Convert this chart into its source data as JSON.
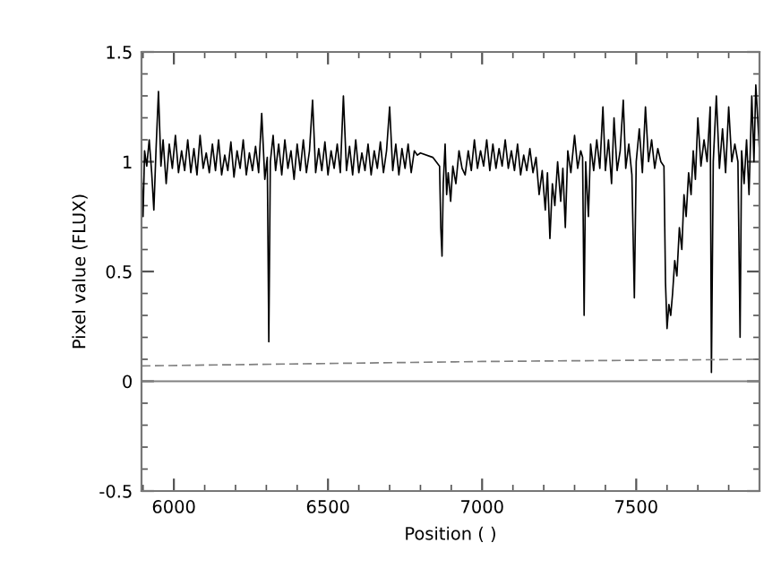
{
  "chart_data": {
    "type": "line",
    "xlabel": "Position ( )",
    "ylabel": "Pixel value (FLUX)",
    "xlim": [
      5895,
      7900
    ],
    "ylim": [
      -0.5,
      1.5
    ],
    "xticks": [
      6000,
      6500,
      7000,
      7500
    ],
    "yticks": [
      -0.5,
      0,
      0.5,
      1,
      1.5
    ],
    "grid": false,
    "legend": false,
    "ref_lines": [
      {
        "axis": "y",
        "value": 0,
        "color": "#808080",
        "line_style": "solid"
      }
    ],
    "series": [
      {
        "color": "#000000",
        "line_style": "solid",
        "x": [
          5895,
          5900,
          5905,
          5912,
          5920,
          5928,
          5935,
          5942,
          5950,
          5958,
          5965,
          5975,
          5985,
          5995,
          6005,
          6015,
          6025,
          6035,
          6045,
          6055,
          6065,
          6075,
          6085,
          6095,
          6105,
          6115,
          6125,
          6135,
          6145,
          6155,
          6165,
          6175,
          6185,
          6195,
          6205,
          6215,
          6225,
          6235,
          6245,
          6255,
          6265,
          6275,
          6285,
          6295,
          6303,
          6308,
          6313,
          6322,
          6330,
          6340,
          6350,
          6360,
          6370,
          6380,
          6390,
          6400,
          6410,
          6420,
          6430,
          6440,
          6450,
          6460,
          6470,
          6480,
          6490,
          6500,
          6510,
          6520,
          6530,
          6540,
          6550,
          6560,
          6570,
          6580,
          6590,
          6600,
          6610,
          6620,
          6630,
          6640,
          6650,
          6660,
          6670,
          6680,
          6690,
          6700,
          6710,
          6720,
          6730,
          6740,
          6750,
          6760,
          6770,
          6780,
          6790,
          6800,
          6840,
          6862,
          6866,
          6870,
          6874,
          6880,
          6885,
          6890,
          6898,
          6905,
          6915,
          6925,
          6935,
          6945,
          6955,
          6965,
          6975,
          6985,
          6995,
          7005,
          7015,
          7025,
          7035,
          7045,
          7055,
          7065,
          7075,
          7085,
          7095,
          7105,
          7115,
          7125,
          7135,
          7145,
          7155,
          7165,
          7175,
          7185,
          7195,
          7205,
          7212,
          7220,
          7228,
          7236,
          7245,
          7255,
          7262,
          7270,
          7278,
          7288,
          7300,
          7310,
          7320,
          7326,
          7331,
          7336,
          7345,
          7352,
          7362,
          7372,
          7382,
          7392,
          7400,
          7410,
          7420,
          7428,
          7438,
          7448,
          7458,
          7466,
          7476,
          7486,
          7494,
          7500,
          7510,
          7520,
          7530,
          7540,
          7550,
          7560,
          7570,
          7580,
          7590,
          7595,
          7600,
          7606,
          7612,
          7618,
          7625,
          7632,
          7640,
          7648,
          7655,
          7662,
          7670,
          7678,
          7685,
          7692,
          7700,
          7710,
          7720,
          7730,
          7740,
          7744,
          7750,
          7760,
          7770,
          7780,
          7790,
          7800,
          7810,
          7820,
          7830,
          7837,
          7842,
          7850,
          7858,
          7866,
          7875,
          7882,
          7888,
          7900
        ],
        "values": [
          0.95,
          0.75,
          1.05,
          0.98,
          1.1,
          0.95,
          0.78,
          1.05,
          1.32,
          0.98,
          1.1,
          0.9,
          1.08,
          0.97,
          1.12,
          0.95,
          1.05,
          0.96,
          1.1,
          0.95,
          1.06,
          0.94,
          1.12,
          0.97,
          1.04,
          0.95,
          1.08,
          0.96,
          1.1,
          0.94,
          1.03,
          0.96,
          1.09,
          0.93,
          1.05,
          0.97,
          1.1,
          0.94,
          1.04,
          0.96,
          1.07,
          0.95,
          1.22,
          0.92,
          1.02,
          0.18,
          1.0,
          1.12,
          0.96,
          1.08,
          0.94,
          1.1,
          0.97,
          1.05,
          0.92,
          1.08,
          0.96,
          1.1,
          0.95,
          1.05,
          1.28,
          0.95,
          1.06,
          0.96,
          1.09,
          0.94,
          1.05,
          0.97,
          1.08,
          0.95,
          1.3,
          0.96,
          1.07,
          0.94,
          1.1,
          0.95,
          1.04,
          0.96,
          1.08,
          0.94,
          1.05,
          0.97,
          1.09,
          0.95,
          1.05,
          1.25,
          0.96,
          1.08,
          0.94,
          1.06,
          0.97,
          1.08,
          0.95,
          1.05,
          1.03,
          1.04,
          1.02,
          0.98,
          0.7,
          0.57,
          0.9,
          1.08,
          0.85,
          0.95,
          0.82,
          0.98,
          0.9,
          1.05,
          0.97,
          0.94,
          1.05,
          0.96,
          1.1,
          0.97,
          1.05,
          0.98,
          1.1,
          0.96,
          1.08,
          0.97,
          1.06,
          0.98,
          1.1,
          0.97,
          1.05,
          0.96,
          1.08,
          0.94,
          1.03,
          0.96,
          1.06,
          0.95,
          1.02,
          0.85,
          0.96,
          0.78,
          0.95,
          0.65,
          0.9,
          0.8,
          1.0,
          0.82,
          0.97,
          0.7,
          1.05,
          0.95,
          1.12,
          0.97,
          1.05,
          1.02,
          0.3,
          1.0,
          0.75,
          1.08,
          0.96,
          1.1,
          0.97,
          1.25,
          0.96,
          1.1,
          0.9,
          1.2,
          0.96,
          1.05,
          1.28,
          0.97,
          1.08,
          0.94,
          0.38,
          1.0,
          1.15,
          0.95,
          1.25,
          1.0,
          1.1,
          0.97,
          1.06,
          1.0,
          0.98,
          0.45,
          0.24,
          0.35,
          0.3,
          0.4,
          0.55,
          0.48,
          0.7,
          0.6,
          0.85,
          0.75,
          0.95,
          0.85,
          1.05,
          0.92,
          1.2,
          0.98,
          1.1,
          1.0,
          1.25,
          0.04,
          1.0,
          1.3,
          0.97,
          1.15,
          0.95,
          1.25,
          1.0,
          1.08,
          1.0,
          0.2,
          1.05,
          0.9,
          1.1,
          0.85,
          1.3,
          1.0,
          1.35,
          1.05
        ]
      },
      {
        "color": "#808080",
        "line_style": "dashed",
        "x": [
          5895,
          7000,
          7900
        ],
        "values": [
          0.07,
          0.09,
          0.1
        ]
      }
    ]
  }
}
